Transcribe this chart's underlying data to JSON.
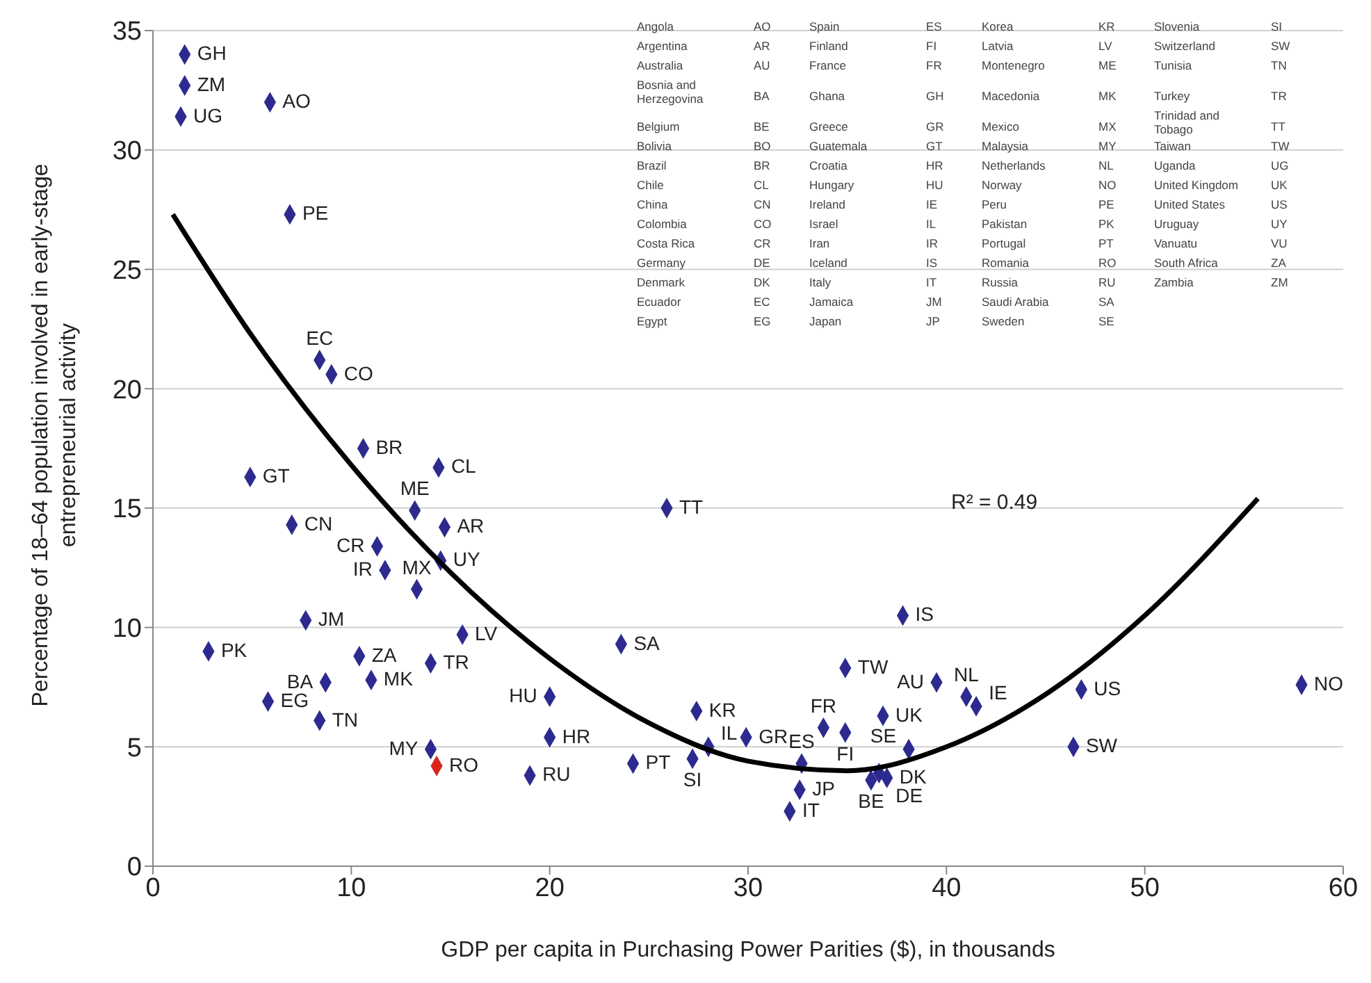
{
  "chart_data": {
    "type": "scatter",
    "xlabel": "GDP per capita in Purchasing Power Parities ($), in thousands",
    "ylabel": "Percentage of 18–64 population involved in early-stage entrepreneurial activity",
    "xlim": [
      0,
      60
    ],
    "xticks": [
      0,
      10,
      20,
      30,
      40,
      50,
      60
    ],
    "ylim": [
      0,
      35
    ],
    "yticks": [
      0,
      5,
      10,
      15,
      20,
      25,
      30,
      35
    ],
    "grid": "y",
    "marker": "diamond",
    "series": [
      {
        "x": [
          1.6,
          1.6,
          1.4,
          5.9,
          6.9,
          8.4,
          9.0,
          10.6,
          14.4,
          4.9,
          13.2,
          7.0,
          14.7,
          11.3,
          14.5,
          11.7,
          13.3,
          7.7,
          15.6,
          2.8,
          10.4,
          14.0,
          11.0,
          8.7,
          5.8,
          8.4,
          20.0,
          20.0,
          14.0,
          14.3,
          19.0,
          24.2,
          23.6,
          25.9,
          27.4,
          27.2,
          28.0,
          29.9,
          32.7,
          32.6,
          32.1,
          33.8,
          34.9,
          34.9,
          36.8,
          37.8,
          36.2,
          36.6,
          37.0,
          38.1,
          39.5,
          41.0,
          41.5,
          46.8,
          46.4,
          57.9
        ],
        "values": [
          34.0,
          32.7,
          31.4,
          32.0,
          27.3,
          21.2,
          20.6,
          17.5,
          16.7,
          16.3,
          14.9,
          14.3,
          14.2,
          13.4,
          12.8,
          12.4,
          11.6,
          10.3,
          9.7,
          9.0,
          8.8,
          8.5,
          7.8,
          7.7,
          6.9,
          6.1,
          7.1,
          5.4,
          4.9,
          4.2,
          3.8,
          4.3,
          9.3,
          15.0,
          6.5,
          4.5,
          5.0,
          5.4,
          4.3,
          3.2,
          2.3,
          5.8,
          5.6,
          8.3,
          6.3,
          10.5,
          3.6,
          3.9,
          3.7,
          4.9,
          7.7,
          7.1,
          6.7,
          7.4,
          5.0,
          7.6
        ],
        "colors": [
          "#2d2a8f",
          "#2d2a8f",
          "#2d2a8f",
          "#2d2a8f",
          "#2d2a8f",
          "#2d2a8f",
          "#2d2a8f",
          "#2d2a8f",
          "#2d2a8f",
          "#2d2a8f",
          "#2d2a8f",
          "#2d2a8f",
          "#2d2a8f",
          "#2d2a8f",
          "#2d2a8f",
          "#2d2a8f",
          "#2d2a8f",
          "#2d2a8f",
          "#2d2a8f",
          "#2d2a8f",
          "#2d2a8f",
          "#2d2a8f",
          "#2d2a8f",
          "#2d2a8f",
          "#2d2a8f",
          "#2d2a8f",
          "#2d2a8f",
          "#2d2a8f",
          "#2d2a8f",
          "#d9261c",
          "#2d2a8f",
          "#2d2a8f",
          "#2d2a8f",
          "#2d2a8f",
          "#2d2a8f",
          "#2d2a8f",
          "#2d2a8f",
          "#2d2a8f",
          "#2d2a8f",
          "#2d2a8f",
          "#2d2a8f",
          "#2d2a8f",
          "#2d2a8f",
          "#2d2a8f",
          "#2d2a8f",
          "#2d2a8f",
          "#2d2a8f",
          "#2d2a8f",
          "#2d2a8f",
          "#2d2a8f",
          "#2d2a8f",
          "#2d2a8f",
          "#2d2a8f",
          "#2d2a8f",
          "#2d2a8f",
          "#2d2a8f"
        ]
      },
      {
        "type": "line",
        "marker": "none",
        "color": "#000000",
        "x": [
          1,
          5,
          10,
          15,
          20,
          25,
          30,
          35,
          40,
          45,
          50,
          55.7
        ],
        "values": [
          27.3,
          22.2,
          16.8,
          12.3,
          8.7,
          6.0,
          4.4,
          4.0,
          5.0,
          7.2,
          10.5,
          15.4
        ]
      }
    ],
    "annotations": [
      "R² = 0.49",
      "Angola",
      "AO",
      "Argentina",
      "AR",
      "Australia",
      "AU",
      "Bosnia and Herzegovina",
      "BA",
      "Belgium",
      "BE",
      "Bolivia",
      "BO",
      "Brazil",
      "BR",
      "Chile",
      "CL",
      "China",
      "CN",
      "Colombia",
      "CO",
      "Costa Rica",
      "CR",
      "Germany",
      "DE",
      "Denmark",
      "DK",
      "Ecuador",
      "EC",
      "Egypt",
      "EG",
      "Spain",
      "ES",
      "Finland",
      "FI",
      "France",
      "FR",
      "Ghana",
      "GH",
      "Greece",
      "GR",
      "Guatemala",
      "GT",
      "Croatia",
      "HR",
      "Hungary",
      "HU",
      "Ireland",
      "IE",
      "Israel",
      "IL",
      "Iran",
      "IR",
      "Iceland",
      "IS",
      "Italy",
      "IT",
      "Jamaica",
      "JM",
      "Japan",
      "JP",
      "Korea",
      "KR",
      "Latvia",
      "LV",
      "Montenegro",
      "ME",
      "Macedonia",
      "MK",
      "Mexico",
      "MX",
      "Malaysia",
      "MY",
      "Netherlands",
      "NL",
      "Norway",
      "NO",
      "Peru",
      "PE",
      "Pakistan",
      "PK",
      "Portugal",
      "PT",
      "Romania",
      "RO",
      "Russia",
      "RU",
      "Saudi Arabia",
      "SA",
      "Sweden",
      "SE",
      "Slovenia",
      "SI",
      "Switzerland",
      "SW",
      "Tunisia",
      "TN",
      "Turkey",
      "TR",
      "Trinidad and Tobago",
      "TT",
      "Taiwan",
      "TW",
      "Uganda",
      "UG",
      "United Kingdom",
      "UK",
      "United States",
      "US",
      "Uruguay",
      "UY",
      "Vanuatu",
      "VU",
      "South Africa",
      "ZA",
      "Zambia",
      "ZM",
      {
        "text": "GH",
        "x": 1.6,
        "y": 34.0
      },
      {
        "text": "ZM",
        "x": 1.6,
        "y": 32.7
      },
      {
        "text": "UG",
        "x": 1.4,
        "y": 31.4
      },
      {
        "text": "AO",
        "x": 5.9,
        "y": 32.0
      },
      {
        "text": "PE",
        "x": 6.9,
        "y": 27.3
      },
      {
        "text": "EC",
        "x": 8.4,
        "y": 21.2
      },
      {
        "text": "CO",
        "x": 9.0,
        "y": 20.6
      },
      {
        "text": "BR",
        "x": 10.6,
        "y": 17.5
      },
      {
        "text": "CL",
        "x": 14.4,
        "y": 16.7
      },
      {
        "text": "GT",
        "x": 4.9,
        "y": 16.3
      },
      {
        "text": "ME",
        "x": 13.2,
        "y": 14.9
      },
      {
        "text": "CN",
        "x": 7.0,
        "y": 14.3
      },
      {
        "text": "AR",
        "x": 14.7,
        "y": 14.2
      },
      {
        "text": "CR",
        "x": 11.3,
        "y": 13.4
      },
      {
        "text": "UY",
        "x": 14.5,
        "y": 12.8
      },
      {
        "text": "IR",
        "x": 11.7,
        "y": 12.4
      },
      {
        "text": "MX",
        "x": 13.3,
        "y": 11.6
      },
      {
        "text": "JM",
        "x": 7.7,
        "y": 10.3
      },
      {
        "text": "LV",
        "x": 15.6,
        "y": 9.7
      },
      {
        "text": "PK",
        "x": 2.8,
        "y": 9.0
      },
      {
        "text": "ZA",
        "x": 10.4,
        "y": 8.8
      },
      {
        "text": "TR",
        "x": 14.0,
        "y": 8.5
      },
      {
        "text": "MK",
        "x": 11.0,
        "y": 7.8
      },
      {
        "text": "BA",
        "x": 8.7,
        "y": 7.7
      },
      {
        "text": "EG",
        "x": 5.8,
        "y": 6.9
      },
      {
        "text": "TN",
        "x": 8.4,
        "y": 6.1
      },
      {
        "text": "HU",
        "x": 20.0,
        "y": 7.1
      },
      {
        "text": "HR",
        "x": 20.0,
        "y": 5.4
      },
      {
        "text": "MY",
        "x": 14.0,
        "y": 4.9
      },
      {
        "text": "RO",
        "x": 14.3,
        "y": 4.2
      },
      {
        "text": "RU",
        "x": 19.0,
        "y": 3.8
      },
      {
        "text": "PT",
        "x": 24.2,
        "y": 4.3
      },
      {
        "text": "SA",
        "x": 23.6,
        "y": 9.3
      },
      {
        "text": "TT",
        "x": 25.9,
        "y": 15.0
      },
      {
        "text": "KR",
        "x": 27.4,
        "y": 6.5
      },
      {
        "text": "SI",
        "x": 27.2,
        "y": 4.5
      },
      {
        "text": "IL",
        "x": 28.0,
        "y": 5.0
      },
      {
        "text": "GR",
        "x": 29.9,
        "y": 5.4
      },
      {
        "text": "ES",
        "x": 32.7,
        "y": 4.3
      },
      {
        "text": "JP",
        "x": 32.6,
        "y": 3.2
      },
      {
        "text": "IT",
        "x": 32.1,
        "y": 2.3
      },
      {
        "text": "FR",
        "x": 33.8,
        "y": 5.8
      },
      {
        "text": "FI",
        "x": 34.9,
        "y": 5.6
      },
      {
        "text": "TW",
        "x": 34.9,
        "y": 8.3
      },
      {
        "text": "UK",
        "x": 36.8,
        "y": 6.3
      },
      {
        "text": "IS",
        "x": 37.8,
        "y": 10.5
      },
      {
        "text": "BE",
        "x": 36.2,
        "y": 3.6
      },
      {
        "text": "DE",
        "x": 36.6,
        "y": 3.9
      },
      {
        "text": "DK",
        "x": 37.0,
        "y": 3.7
      },
      {
        "text": "SE",
        "x": 38.1,
        "y": 4.9
      },
      {
        "text": "AU",
        "x": 39.5,
        "y": 7.7
      },
      {
        "text": "NL",
        "x": 41.0,
        "y": 7.1
      },
      {
        "text": "IE",
        "x": 41.5,
        "y": 6.7
      },
      {
        "text": "US",
        "x": 46.8,
        "y": 7.4
      },
      {
        "text": "SW",
        "x": 46.4,
        "y": 5.0
      },
      {
        "text": "NO",
        "x": 57.9,
        "y": 7.6
      }
    ]
  }
}
